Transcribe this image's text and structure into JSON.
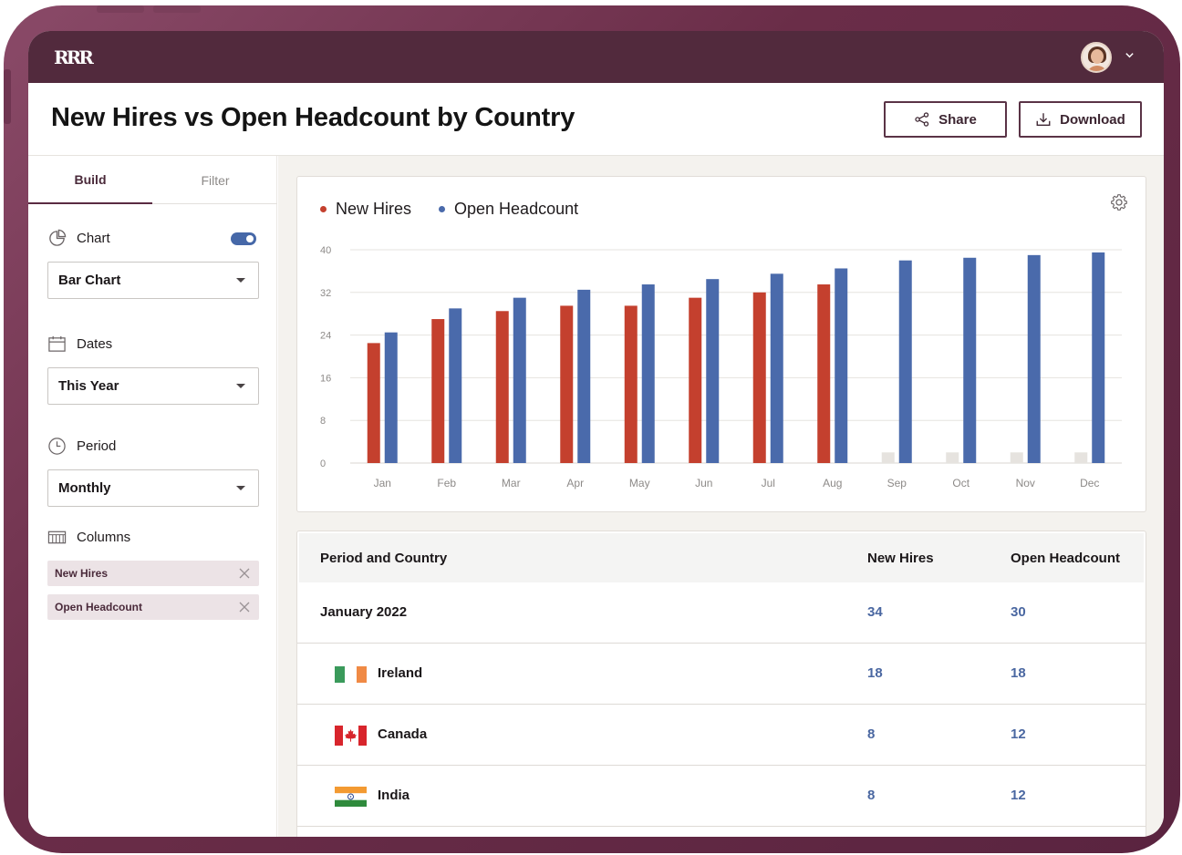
{
  "app": {
    "logo_text": "RRR"
  },
  "header": {
    "title": "New Hires vs Open Headcount by Country",
    "share_label": "Share",
    "download_label": "Download"
  },
  "sidebar": {
    "tabs": [
      {
        "label": "Build"
      },
      {
        "label": "Filter"
      }
    ],
    "chart": {
      "label": "Chart",
      "toggle_on": true,
      "value": "Bar Chart"
    },
    "dates": {
      "label": "Dates",
      "value": "This Year"
    },
    "period": {
      "label": "Period",
      "value": "Monthly"
    },
    "columns": {
      "label": "Columns",
      "chips": [
        "New Hires",
        "Open Headcount"
      ]
    }
  },
  "colors": {
    "new_hires": "#c4402e",
    "open_headcount": "#4a6aab",
    "placeholder": "#e6e3df",
    "brand": "#522a3d"
  },
  "chart_data": {
    "type": "bar",
    "categories": [
      "Jan",
      "Feb",
      "Mar",
      "Apr",
      "May",
      "Jun",
      "Jul",
      "Aug",
      "Sep",
      "Oct",
      "Nov",
      "Dec"
    ],
    "series": [
      {
        "name": "New Hires",
        "values": [
          22.5,
          27,
          28.5,
          29.5,
          29.5,
          31,
          32,
          33.5,
          null,
          null,
          null,
          null
        ]
      },
      {
        "name": "Open Headcount",
        "values": [
          24.5,
          29,
          31,
          32.5,
          33.5,
          34.5,
          35.5,
          36.5,
          38,
          38.5,
          39,
          39.5
        ]
      }
    ],
    "placeholder_value": 2,
    "yticks": [
      0,
      8,
      16,
      24,
      32,
      40
    ],
    "ylim": [
      0,
      40
    ],
    "grid": true,
    "legend": "top-left"
  },
  "table": {
    "headers": {
      "period": "Period and Country",
      "new_hires": "New Hires",
      "open_headcount": "Open Headcount"
    },
    "rows": [
      {
        "label": "January 2022",
        "new_hires": "34",
        "open_headcount": "30",
        "flag": ""
      },
      {
        "label": "Ireland",
        "new_hires": "18",
        "open_headcount": "18",
        "flag": "ireland"
      },
      {
        "label": "Canada",
        "new_hires": "8",
        "open_headcount": "12",
        "flag": "canada"
      },
      {
        "label": "India",
        "new_hires": "8",
        "open_headcount": "12",
        "flag": "india"
      }
    ]
  }
}
